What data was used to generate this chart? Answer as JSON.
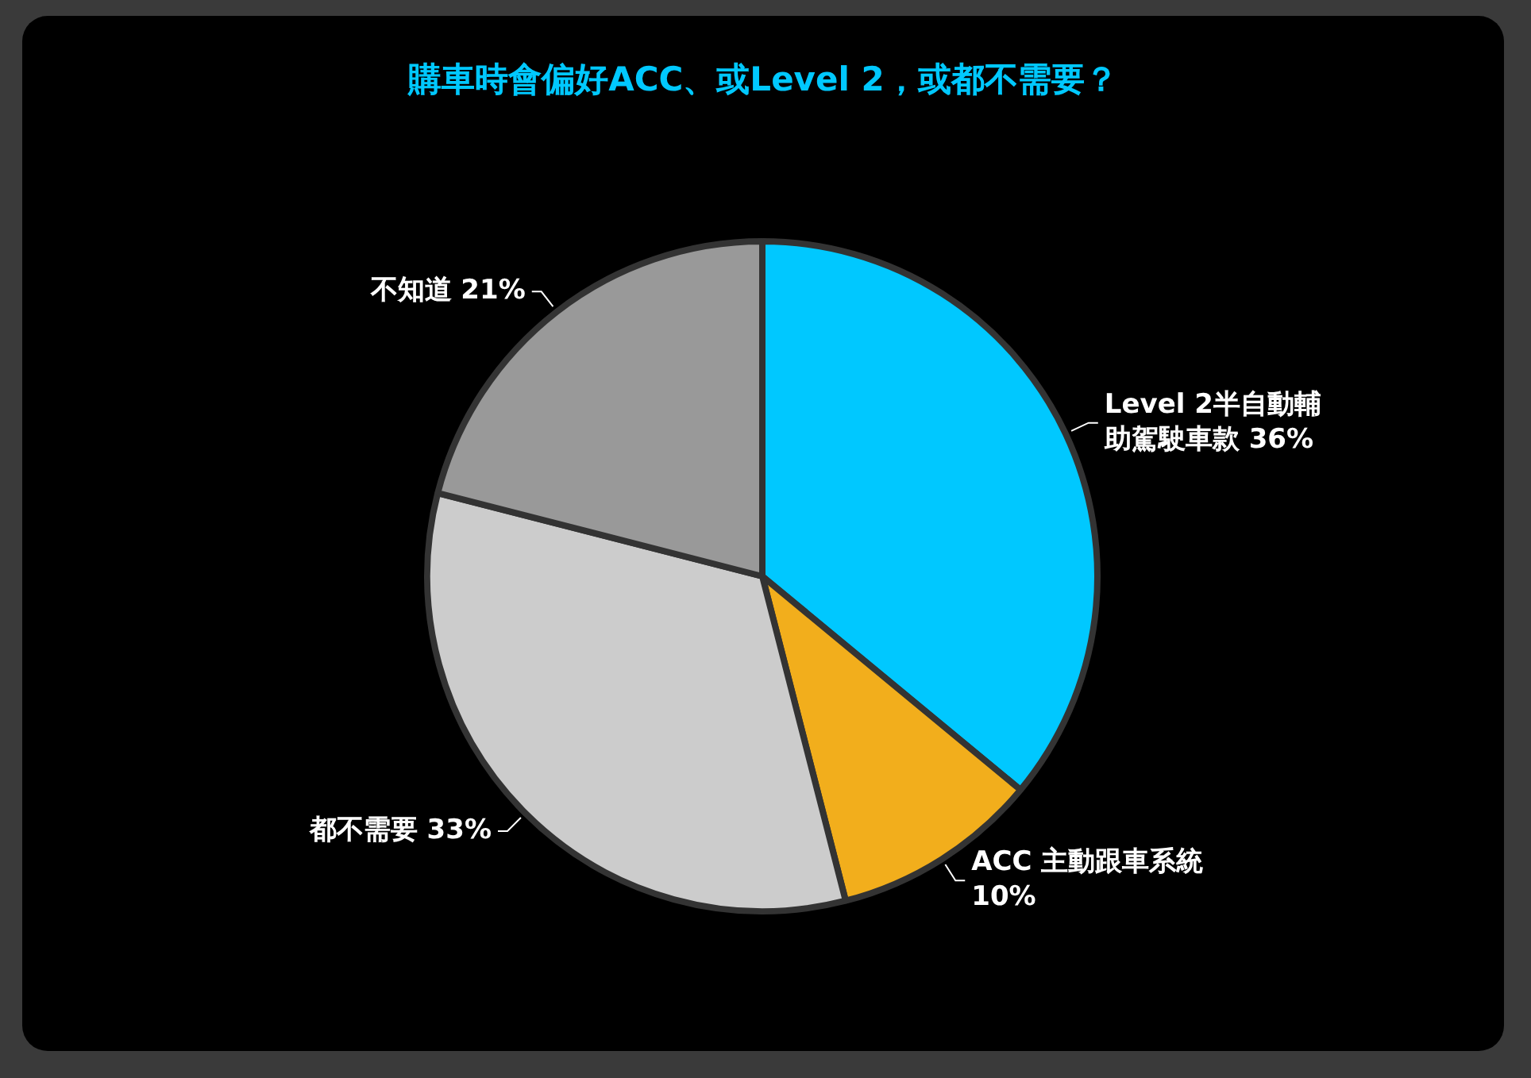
{
  "chart_data": {
    "type": "pie",
    "title": "購車時會偏好ACC、或Level 2，或都不需要？",
    "categories": [
      "Level 2半自動輔助駕駛車款",
      "ACC 主動跟車系統",
      "都不需要",
      "不知道"
    ],
    "values": [
      36,
      10,
      33,
      21
    ],
    "value_labels": [
      "36%",
      "10%",
      "33%",
      "21%"
    ],
    "colors": [
      "#00c8ff",
      "#f2ae1c",
      "#cccccc",
      "#999999"
    ],
    "legend": false
  }
}
